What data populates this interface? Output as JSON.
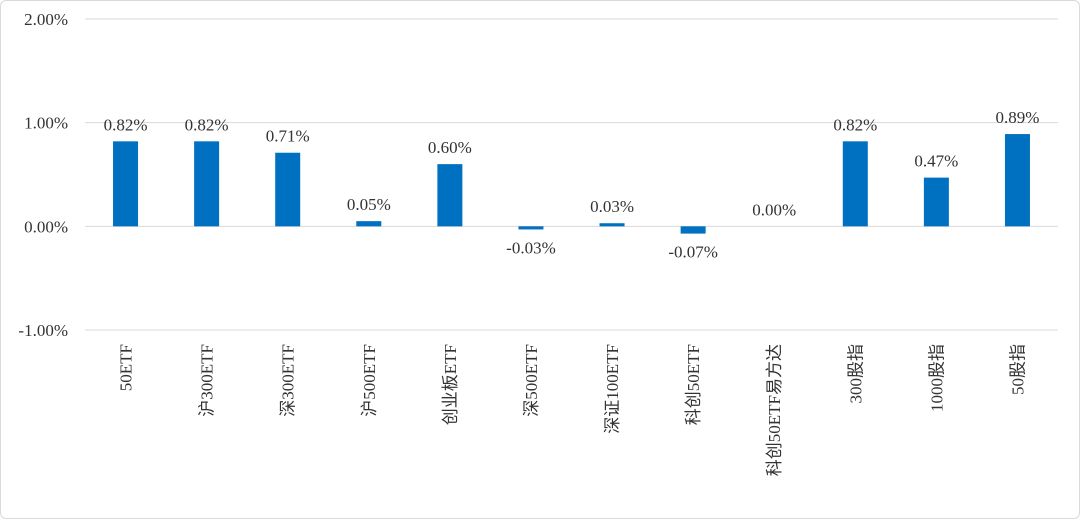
{
  "chart_data": {
    "type": "bar",
    "title": "",
    "xlabel": "",
    "ylabel": "",
    "ylim": [
      -0.01,
      0.02
    ],
    "y_ticks": [
      {
        "value": 0.02,
        "label": "2.00%"
      },
      {
        "value": 0.01,
        "label": "1.00%"
      },
      {
        "value": 0.0,
        "label": "0.00%"
      },
      {
        "value": -0.01,
        "label": "-1.00%"
      }
    ],
    "grid": true,
    "legend": "none",
    "bar_color": "#0070c0",
    "categories": [
      "50ETF",
      "沪300ETF",
      "深300ETF",
      "沪500ETF",
      "创业板ETF",
      "深500ETF",
      "深证100ETF",
      "科创50ETF",
      "科创50ETF易方达",
      "300股指",
      "1000股指",
      "50股指"
    ],
    "values": [
      0.0082,
      0.0082,
      0.0071,
      0.0005,
      0.006,
      -0.0003,
      0.0003,
      -0.0007,
      0.0,
      0.0082,
      0.0047,
      0.0089
    ],
    "data_labels": [
      "0.82%",
      "0.82%",
      "0.71%",
      "0.05%",
      "0.60%",
      "-0.03%",
      "0.03%",
      "-0.07%",
      "0.00%",
      "0.82%",
      "0.47%",
      "0.89%"
    ]
  }
}
